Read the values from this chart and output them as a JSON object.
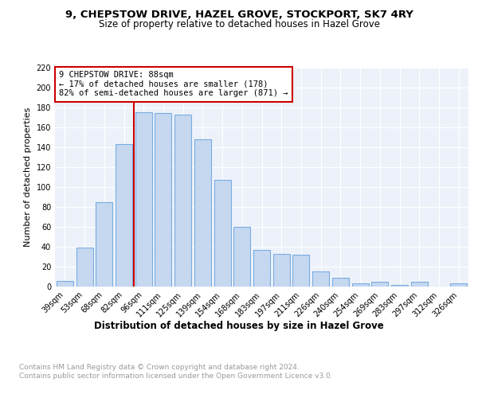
{
  "title": "9, CHEPSTOW DRIVE, HAZEL GROVE, STOCKPORT, SK7 4RY",
  "subtitle": "Size of property relative to detached houses in Hazel Grove",
  "xlabel": "Distribution of detached houses by size in Hazel Grove",
  "ylabel": "Number of detached properties",
  "footer": "Contains HM Land Registry data © Crown copyright and database right 2024.\nContains public sector information licensed under the Open Government Licence v3.0.",
  "categories": [
    "39sqm",
    "53sqm",
    "68sqm",
    "82sqm",
    "96sqm",
    "111sqm",
    "125sqm",
    "139sqm",
    "154sqm",
    "168sqm",
    "183sqm",
    "197sqm",
    "211sqm",
    "226sqm",
    "240sqm",
    "254sqm",
    "269sqm",
    "283sqm",
    "297sqm",
    "312sqm",
    "326sqm"
  ],
  "values": [
    6,
    39,
    85,
    143,
    175,
    174,
    173,
    148,
    107,
    60,
    37,
    33,
    32,
    15,
    9,
    3,
    5,
    2,
    5,
    0,
    3
  ],
  "bar_color": "#c5d8f0",
  "bar_edge_color": "#7aace0",
  "annotation_title": "9 CHEPSTOW DRIVE: 88sqm",
  "annotation_line1": "← 17% of detached houses are smaller (178)",
  "annotation_line2": "82% of semi-detached houses are larger (871) →",
  "annotation_box_color": "#ffffff",
  "annotation_box_edge_color": "#cc0000",
  "red_line_color": "#cc0000",
  "ylim": [
    0,
    220
  ],
  "yticks": [
    0,
    20,
    40,
    60,
    80,
    100,
    120,
    140,
    160,
    180,
    200,
    220
  ],
  "bg_color": "#edf2fa",
  "grid_color": "#ffffff",
  "title_fontsize": 9.5,
  "subtitle_fontsize": 8.5,
  "xlabel_fontsize": 8.5,
  "ylabel_fontsize": 8,
  "tick_fontsize": 7,
  "annotation_fontsize": 7.5,
  "footer_fontsize": 6.5
}
